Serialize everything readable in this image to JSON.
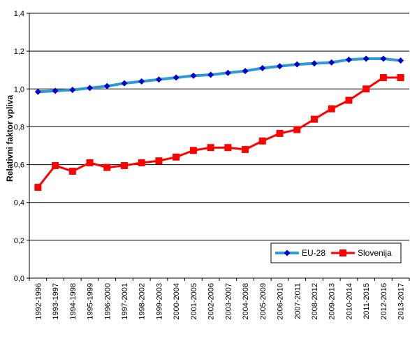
{
  "chart_data": {
    "type": "line",
    "ylabel": "Relativni faktor vpliva",
    "ylim": [
      0,
      1.4
    ],
    "yticks": [
      "0,0",
      "0,2",
      "0,4",
      "0,6",
      "0,8",
      "1,0",
      "1,2",
      "1,4"
    ],
    "grid": true,
    "legend_position": "bottom-right",
    "categories": [
      "1992-1996",
      "1993-1997",
      "1994-1998",
      "1995-1999",
      "1996-2000",
      "1997-2001",
      "1998-2002",
      "1999-2003",
      "2000-2004",
      "2001-2005",
      "2002-2006",
      "2003-2007",
      "2004-2008",
      "2005-2009",
      "2006-2010",
      "2007-2011",
      "2008-2012",
      "2009-2013",
      "2010-2014",
      "2011-2015",
      "2012-2016",
      "2013-2017"
    ],
    "series": [
      {
        "name": "EU-28",
        "color": "#2e9bd6",
        "marker_color": "#0000cc",
        "marker": "diamond",
        "values": [
          0.985,
          0.99,
          0.995,
          1.005,
          1.015,
          1.03,
          1.04,
          1.05,
          1.06,
          1.07,
          1.075,
          1.085,
          1.095,
          1.11,
          1.12,
          1.13,
          1.135,
          1.14,
          1.155,
          1.16,
          1.16,
          1.15
        ]
      },
      {
        "name": "Slovenija",
        "color": "#ff0000",
        "marker_color": "#ff0000",
        "marker": "square",
        "values": [
          0.48,
          0.595,
          0.565,
          0.61,
          0.585,
          0.595,
          0.61,
          0.62,
          0.64,
          0.675,
          0.69,
          0.69,
          0.68,
          0.725,
          0.765,
          0.785,
          0.84,
          0.895,
          0.94,
          1.0,
          1.06,
          1.06
        ]
      }
    ]
  }
}
